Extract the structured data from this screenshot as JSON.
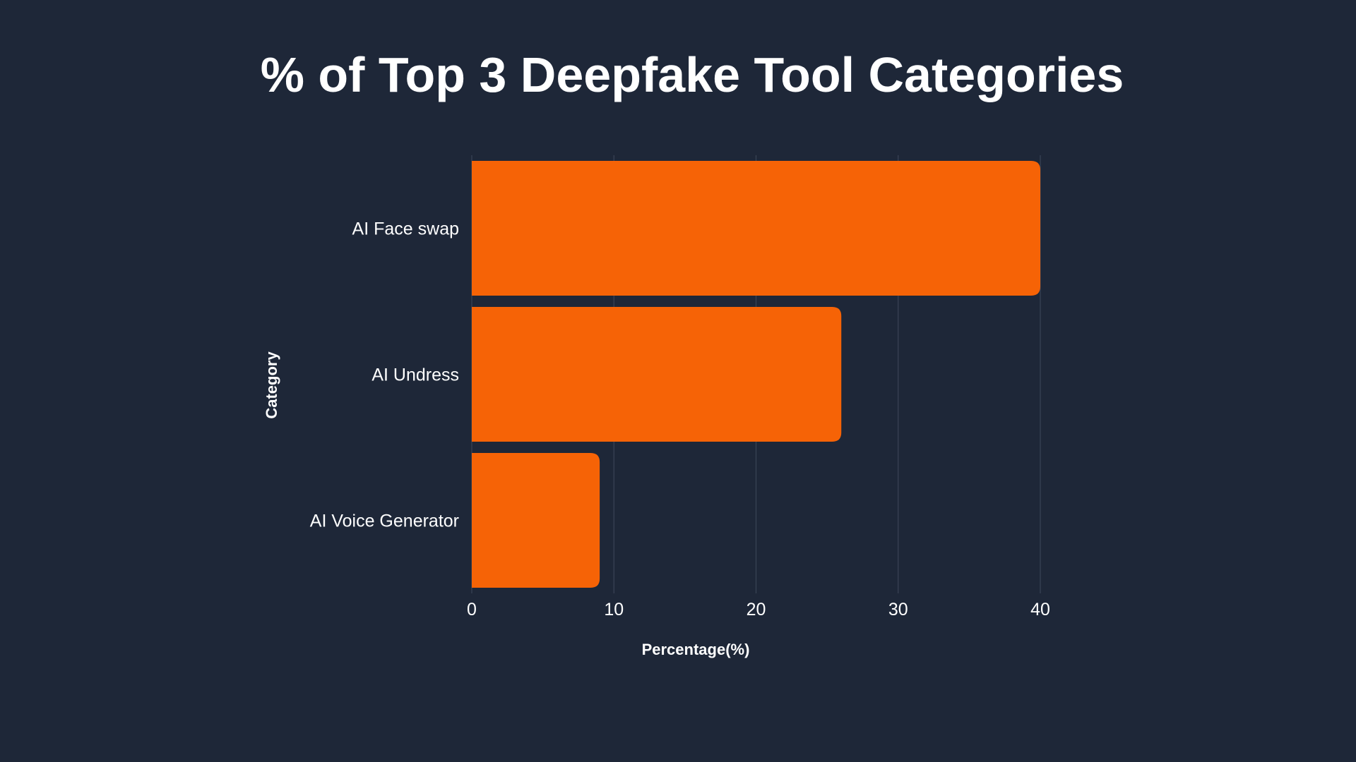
{
  "chart_data": {
    "type": "bar",
    "orientation": "horizontal",
    "title": "% of Top 3 Deepfake Tool Categories",
    "xlabel": "Percentage(%)",
    "ylabel": "Category",
    "categories": [
      "AI Face swap",
      "AI Undress",
      "AI Voice Generator"
    ],
    "values": [
      40,
      26,
      9
    ],
    "xlim": [
      0,
      40
    ],
    "xticks": [
      0,
      10,
      20,
      30,
      40
    ],
    "grid": "vertical",
    "legend": "none"
  },
  "colors": {
    "background": "#1e2738",
    "bar": "#f66306",
    "text": "#ffffff",
    "grid": "#3a4456"
  }
}
